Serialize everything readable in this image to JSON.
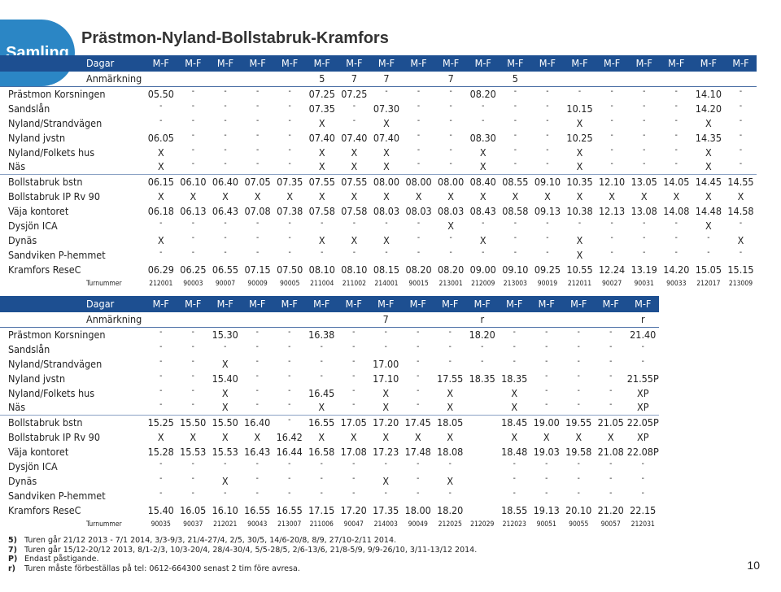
{
  "badge": "Samling",
  "title": "Prästmon-Nyland-Bollstabruk-Kramfors",
  "page_number": "10",
  "colors": {
    "header_bg": "#1d4f91",
    "badge_bg": "#2b86c5"
  },
  "table1": {
    "days_label": "Dagar",
    "days": [
      "M-F",
      "M-F",
      "M-F",
      "M-F",
      "M-F",
      "M-F",
      "M-F",
      "M-F",
      "M-F",
      "M-F",
      "M-F",
      "M-F",
      "M-F",
      "M-F",
      "M-F",
      "M-F",
      "M-F",
      "M-F",
      "M-F"
    ],
    "notes_label": "Anmärkning",
    "notes": [
      "",
      "",
      "",
      "",
      "",
      "5",
      "7",
      "7",
      "",
      "7",
      "",
      "5",
      "",
      "",
      "",
      "",
      "",
      "",
      ""
    ],
    "rows": [
      {
        "stop": "Prästmon Korsningen",
        "cells": [
          "05.50",
          "-",
          "-",
          "-",
          "-",
          "07.25",
          "07.25",
          "-",
          "-",
          "-",
          "08.20",
          "-",
          "-",
          "-",
          "-",
          "-",
          "-",
          "14.10",
          "-"
        ]
      },
      {
        "stop": "Sandslån",
        "cells": [
          "-",
          "-",
          "-",
          "-",
          "-",
          "07.35",
          "-",
          "07.30",
          "-",
          "-",
          "-",
          "-",
          "-",
          "10.15",
          "-",
          "-",
          "-",
          "14.20",
          "-"
        ]
      },
      {
        "stop": "Nyland/Strandvägen",
        "cells": [
          "-",
          "-",
          "-",
          "-",
          "-",
          "X",
          "-",
          "X",
          "-",
          "-",
          "-",
          "-",
          "-",
          "X",
          "-",
          "-",
          "-",
          "X",
          "-"
        ]
      },
      {
        "stop": "Nyland jvstn",
        "cells": [
          "06.05",
          "-",
          "-",
          "-",
          "-",
          "07.40",
          "07.40",
          "07.40",
          "-",
          "-",
          "08.30",
          "-",
          "-",
          "10.25",
          "-",
          "-",
          "-",
          "14.35",
          "-"
        ]
      },
      {
        "stop": "Nyland/Folkets hus",
        "cells": [
          "X",
          "-",
          "-",
          "-",
          "-",
          "X",
          "X",
          "X",
          "-",
          "-",
          "X",
          "-",
          "-",
          "X",
          "-",
          "-",
          "-",
          "X",
          "-"
        ]
      },
      {
        "stop": "Näs",
        "cells": [
          "X",
          "-",
          "-",
          "-",
          "-",
          "X",
          "X",
          "X",
          "-",
          "-",
          "X",
          "-",
          "-",
          "X",
          "-",
          "-",
          "-",
          "X",
          "-"
        ]
      },
      {
        "stop": "Bollstabruk bstn",
        "cells": [
          "06.15",
          "06.10",
          "06.40",
          "07.05",
          "07.35",
          "07.55",
          "07.55",
          "08.00",
          "08.00",
          "08.00",
          "08.40",
          "08.55",
          "09.10",
          "10.35",
          "12.10",
          "13.05",
          "14.05",
          "14.45",
          "14.55"
        ]
      },
      {
        "stop": "Bollstabruk IP Rv 90",
        "cells": [
          "X",
          "X",
          "X",
          "X",
          "X",
          "X",
          "X",
          "X",
          "X",
          "X",
          "X",
          "X",
          "X",
          "X",
          "X",
          "X",
          "X",
          "X",
          "X"
        ]
      },
      {
        "stop": "Väja kontoret",
        "cells": [
          "06.18",
          "06.13",
          "06.43",
          "07.08",
          "07.38",
          "07.58",
          "07.58",
          "08.03",
          "08.03",
          "08.03",
          "08.43",
          "08.58",
          "09.13",
          "10.38",
          "12.13",
          "13.08",
          "14.08",
          "14.48",
          "14.58"
        ]
      },
      {
        "stop": "Dysjön ICA",
        "cells": [
          "-",
          "-",
          "-",
          "-",
          "-",
          "-",
          "-",
          "-",
          "-",
          "X",
          "-",
          "-",
          "-",
          "-",
          "-",
          "-",
          "-",
          "X",
          "-"
        ]
      },
      {
        "stop": "Dynäs",
        "cells": [
          "X",
          "-",
          "-",
          "-",
          "-",
          "X",
          "X",
          "X",
          "-",
          "-",
          "X",
          "-",
          "-",
          "X",
          "-",
          "-",
          "-",
          "-",
          "X"
        ]
      },
      {
        "stop": "Sandviken P-hemmet",
        "cells": [
          "-",
          "-",
          "-",
          "-",
          "-",
          "-",
          "-",
          "-",
          "-",
          "-",
          "-",
          "-",
          "-",
          "X",
          "-",
          "-",
          "-",
          "-",
          "-"
        ]
      },
      {
        "stop": "Kramfors ReseC",
        "cells": [
          "06.29",
          "06.25",
          "06.55",
          "07.15",
          "07.50",
          "08.10",
          "08.10",
          "08.15",
          "08.20",
          "08.20",
          "09.00",
          "09.10",
          "09.25",
          "10.55",
          "12.24",
          "13.19",
          "14.20",
          "15.05",
          "15.15"
        ]
      }
    ],
    "turnummer_label": "Turnummer",
    "turnummer": [
      "212001",
      "90003",
      "90007",
      "90009",
      "90005",
      "211004",
      "211002",
      "214001",
      "90015",
      "213001",
      "212009",
      "213003",
      "90019",
      "212011",
      "90027",
      "90031",
      "90033",
      "212017",
      "213009"
    ]
  },
  "table2": {
    "days_label": "Dagar",
    "days": [
      "M-F",
      "M-F",
      "M-F",
      "M-F",
      "M-F",
      "M-F",
      "M-F",
      "M-F",
      "M-F",
      "M-F",
      "M-F",
      "M-F",
      "M-F",
      "M-F",
      "M-F",
      "M-F"
    ],
    "notes_label": "Anmärkning",
    "notes": [
      "",
      "",
      "",
      "",
      "",
      "",
      "",
      "7",
      "",
      "",
      "r",
      "",
      "",
      "",
      "",
      "r"
    ],
    "rows": [
      {
        "stop": "Prästmon Korsningen",
        "cells": [
          "-",
          "-",
          "15.30",
          "-",
          "-",
          "16.38",
          "-",
          "-",
          "-",
          "-",
          "18.20",
          "-",
          "-",
          "-",
          "-",
          "21.40"
        ]
      },
      {
        "stop": "Sandslån",
        "cells": [
          "-",
          "-",
          "-",
          "-",
          "-",
          "-",
          "-",
          "-",
          "-",
          "-",
          "-",
          "-",
          "-",
          "-",
          "-",
          "-"
        ]
      },
      {
        "stop": "Nyland/Strandvägen",
        "cells": [
          "-",
          "-",
          "X",
          "-",
          "-",
          "-",
          "-",
          "17.00",
          "-",
          "-",
          "-",
          "-",
          "-",
          "-",
          "-",
          "-"
        ]
      },
      {
        "stop": "Nyland jvstn",
        "cells": [
          "-",
          "-",
          "15.40",
          "-",
          "-",
          "-",
          "-",
          "17.10",
          "-",
          "17.55",
          "18.35",
          "18.35",
          "-",
          "-",
          "-",
          "21.55P"
        ]
      },
      {
        "stop": "Nyland/Folkets hus",
        "cells": [
          "-",
          "-",
          "X",
          "-",
          "-",
          "16.45",
          "-",
          "X",
          "-",
          "X",
          "",
          "X",
          "-",
          "-",
          "-",
          "XP"
        ]
      },
      {
        "stop": "Näs",
        "cells": [
          "-",
          "-",
          "X",
          "-",
          "-",
          "X",
          "-",
          "X",
          "-",
          "X",
          "",
          "X",
          "-",
          "-",
          "-",
          "XP"
        ]
      },
      {
        "stop": "Bollstabruk bstn",
        "cells": [
          "15.25",
          "15.50",
          "15.50",
          "16.40",
          "-",
          "16.55",
          "17.05",
          "17.20",
          "17.45",
          "18.05",
          "",
          "18.45",
          "19.00",
          "19.55",
          "21.05",
          "22.05P"
        ]
      },
      {
        "stop": "Bollstabruk IP Rv 90",
        "cells": [
          "X",
          "X",
          "X",
          "X",
          "16.42",
          "X",
          "X",
          "X",
          "X",
          "X",
          "",
          "X",
          "X",
          "X",
          "X",
          "XP"
        ]
      },
      {
        "stop": "Väja kontoret",
        "cells": [
          "15.28",
          "15.53",
          "15.53",
          "16.43",
          "16.44",
          "16.58",
          "17.08",
          "17.23",
          "17.48",
          "18.08",
          "",
          "18.48",
          "19.03",
          "19.58",
          "21.08",
          "22.08P"
        ]
      },
      {
        "stop": "Dysjön ICA",
        "cells": [
          "-",
          "-",
          "-",
          "-",
          "-",
          "-",
          "-",
          "-",
          "-",
          "-",
          "",
          "-",
          "-",
          "-",
          "-",
          "-"
        ]
      },
      {
        "stop": "Dynäs",
        "cells": [
          "-",
          "-",
          "X",
          "-",
          "-",
          "-",
          "-",
          "X",
          "-",
          "X",
          "",
          "-",
          "-",
          "-",
          "-",
          "-"
        ]
      },
      {
        "stop": "Sandviken P-hemmet",
        "cells": [
          "-",
          "-",
          "-",
          "-",
          "-",
          "-",
          "-",
          "-",
          "-",
          "-",
          "",
          "-",
          "-",
          "-",
          "-",
          "-"
        ]
      },
      {
        "stop": "Kramfors ReseC",
        "cells": [
          "15.40",
          "16.05",
          "16.10",
          "16.55",
          "16.55",
          "17.15",
          "17.20",
          "17.35",
          "18.00",
          "18.20",
          "",
          "18.55",
          "19.13",
          "20.10",
          "21.20",
          "22.15"
        ]
      }
    ],
    "turnummer_label": "Turnummer",
    "turnummer": [
      "90035",
      "90037",
      "212021",
      "90043",
      "213007",
      "211006",
      "90047",
      "214003",
      "90049",
      "212025",
      "212029",
      "212023",
      "90051",
      "90055",
      "90057",
      "212031"
    ]
  },
  "footnotes": [
    {
      "key": "5)",
      "text": "Turen går 21/12 2013 - 7/1 2014, 3/3-9/3, 21/4-27/4, 2/5, 30/5, 14/6-20/8, 8/9, 27/10-2/11 2014."
    },
    {
      "key": "7)",
      "text": "Turen går 15/12-20/12 2013, 8/1-2/3, 10/3-20/4, 28/4-30/4, 5/5-28/5, 2/6-13/6, 21/8-5/9, 9/9-26/10, 3/11-13/12 2014."
    },
    {
      "key": "P)",
      "text": "Endast påstigande."
    },
    {
      "key": "r)",
      "text": "Turen måste förbeställas på tel: 0612-664300 senast 2 tim före avresa."
    }
  ]
}
